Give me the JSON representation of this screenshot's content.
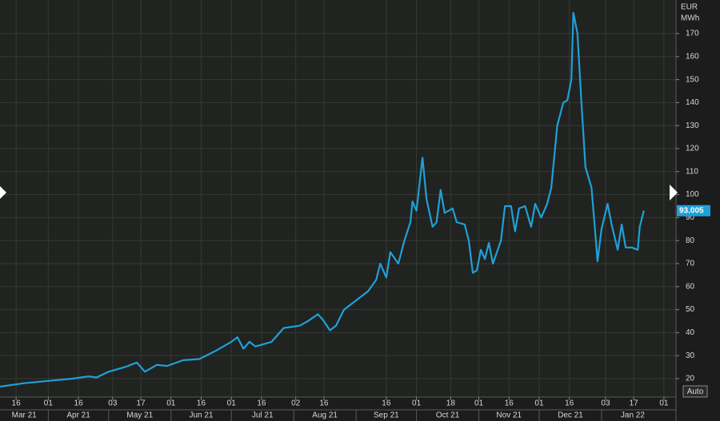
{
  "chart_data": {
    "type": "line",
    "ylabel": [
      "EUR",
      "MWh"
    ],
    "x": [
      "2021-03-08",
      "2021-03-20",
      "2021-04-01",
      "2021-04-13",
      "2021-04-21",
      "2021-04-25",
      "2021-05-01",
      "2021-05-09",
      "2021-05-15",
      "2021-05-19",
      "2021-05-25",
      "2021-05-30",
      "2021-06-07",
      "2021-06-15",
      "2021-06-23",
      "2021-07-01",
      "2021-07-04",
      "2021-07-07",
      "2021-07-10",
      "2021-07-13",
      "2021-07-21",
      "2021-07-27",
      "2021-08-04",
      "2021-08-08",
      "2021-08-13",
      "2021-08-16",
      "2021-08-19",
      "2021-08-22",
      "2021-08-26",
      "2021-09-01",
      "2021-09-07",
      "2021-09-11",
      "2021-09-13",
      "2021-09-16",
      "2021-09-18",
      "2021-09-22",
      "2021-09-25",
      "2021-09-28",
      "2021-09-29",
      "2021-10-01",
      "2021-10-04",
      "2021-10-06",
      "2021-10-09",
      "2021-10-11",
      "2021-10-13",
      "2021-10-15",
      "2021-10-19",
      "2021-10-21",
      "2021-10-25",
      "2021-10-27",
      "2021-10-29",
      "2021-10-31",
      "2021-11-02",
      "2021-11-04",
      "2021-11-06",
      "2021-11-08",
      "2021-11-12",
      "2021-11-14",
      "2021-11-17",
      "2021-11-19",
      "2021-11-21",
      "2021-11-24",
      "2021-11-27",
      "2021-11-29",
      "2021-12-02",
      "2021-12-05",
      "2021-12-07",
      "2021-12-10",
      "2021-12-13",
      "2021-12-15",
      "2021-12-17",
      "2021-12-18",
      "2021-12-20",
      "2021-12-22",
      "2021-12-24",
      "2021-12-27",
      "2021-12-29",
      "2021-12-30",
      "2022-01-01",
      "2022-01-04",
      "2022-01-06",
      "2022-01-09",
      "2022-01-11",
      "2022-01-13",
      "2022-01-16",
      "2022-01-19",
      "2022-01-20",
      "2022-01-22"
    ],
    "series": [
      {
        "color": "#1fa0d8",
        "values": [
          16.5,
          18,
          19,
          20,
          21,
          20.5,
          23,
          25,
          27,
          23,
          26,
          25.5,
          28,
          28.5,
          32,
          36,
          38,
          33,
          36,
          34,
          36,
          42,
          43,
          45,
          48,
          45,
          41,
          43,
          50,
          54,
          58,
          63,
          70,
          64,
          75,
          70,
          80,
          88,
          97,
          93,
          116,
          98,
          86,
          88,
          102,
          92,
          94,
          88,
          87,
          80,
          66,
          67,
          76,
          72,
          79,
          70,
          80,
          95,
          95,
          84,
          94,
          95,
          86,
          96,
          90,
          96,
          103,
          130,
          140,
          141,
          150,
          179,
          170,
          140,
          112,
          103,
          82,
          71,
          85,
          96,
          87,
          76,
          87,
          77,
          77,
          76,
          86,
          93.005
        ]
      }
    ],
    "xlim": [
      "2021-03-08",
      "2022-02-07"
    ],
    "xticks": [
      {
        "value": "2021-03-16",
        "label": "16"
      },
      {
        "value": "2021-04-01",
        "label": "01"
      },
      {
        "value": "2021-04-16",
        "label": "16"
      },
      {
        "value": "2021-05-03",
        "label": "03"
      },
      {
        "value": "2021-05-17",
        "label": "17"
      },
      {
        "value": "2021-06-01",
        "label": "01"
      },
      {
        "value": "2021-06-16",
        "label": "16"
      },
      {
        "value": "2021-07-01",
        "label": "01"
      },
      {
        "value": "2021-07-16",
        "label": "16"
      },
      {
        "value": "2021-08-02",
        "label": "02"
      },
      {
        "value": "2021-08-16",
        "label": "16"
      },
      {
        "value": "2021-09-16",
        "label": "16"
      },
      {
        "value": "2021-10-01",
        "label": "01"
      },
      {
        "value": "2021-10-18",
        "label": "18"
      },
      {
        "value": "2021-11-01",
        "label": "01"
      },
      {
        "value": "2021-11-16",
        "label": "16"
      },
      {
        "value": "2021-12-01",
        "label": "01"
      },
      {
        "value": "2021-12-16",
        "label": "16"
      },
      {
        "value": "2022-01-03",
        "label": "03"
      },
      {
        "value": "2022-01-17",
        "label": "17"
      },
      {
        "value": "2022-02-01",
        "label": "01"
      }
    ],
    "month_ticks": [
      {
        "value": "2021-03-01",
        "label": "Mar 21"
      },
      {
        "value": "2021-04-01",
        "label": "Apr 21"
      },
      {
        "value": "2021-05-01",
        "label": "May 21"
      },
      {
        "value": "2021-06-01",
        "label": "Jun 21"
      },
      {
        "value": "2021-07-01",
        "label": "Jul 21"
      },
      {
        "value": "2021-08-01",
        "label": "Aug 21"
      },
      {
        "value": "2021-09-01",
        "label": "Sep 21"
      },
      {
        "value": "2021-10-01",
        "label": "Oct 21"
      },
      {
        "value": "2021-11-01",
        "label": "Nov 21"
      },
      {
        "value": "2021-12-01",
        "label": "Dec 21"
      },
      {
        "value": "2022-01-01",
        "label": "Jan 22"
      }
    ],
    "ylim": [
      12,
      184.6
    ],
    "yticks": [
      20,
      30,
      40,
      50,
      60,
      70,
      80,
      90,
      100,
      110,
      120,
      130,
      140,
      150,
      160,
      170
    ],
    "grid": true
  },
  "auto_button": "Auto"
}
